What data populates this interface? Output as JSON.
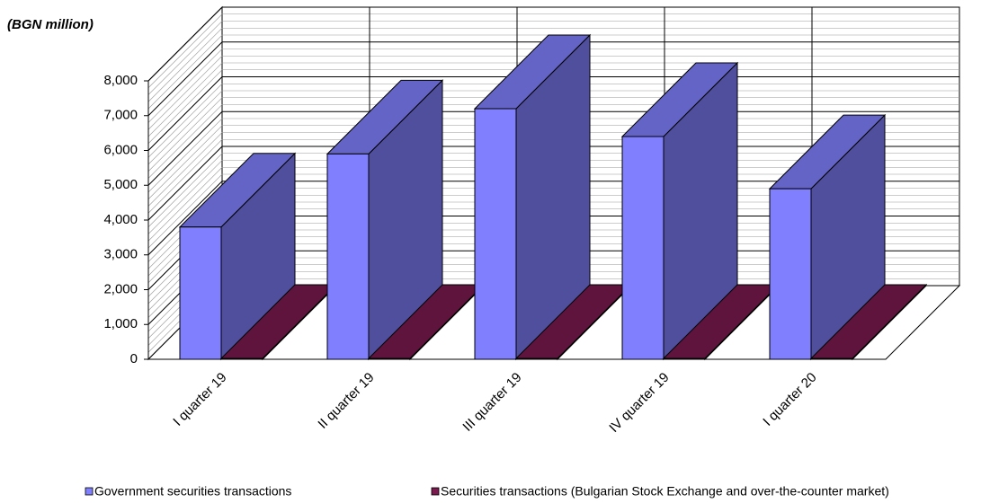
{
  "chart_data": {
    "type": "bar3d",
    "title": "(BGN million)",
    "categories": [
      "I quarter 19",
      "II quarter 19",
      "III quarter 19",
      "IV quarter 19",
      "I quarter 20"
    ],
    "series": [
      {
        "name": "Government securities transactions",
        "color": "#8080ff",
        "values": [
          3800,
          5900,
          7200,
          6400,
          4900
        ]
      },
      {
        "name": "Securities transactions (Bulgarian Stock Exchange and over-the-counter market)",
        "color": "#7a1a4e",
        "values": [
          25,
          25,
          25,
          25,
          25
        ]
      }
    ],
    "ylim": [
      0,
      8000
    ],
    "yticks": [
      0,
      {
        "value": 1000,
        "label": "1,000"
      },
      {
        "value": 2000,
        "label": "2,000"
      },
      {
        "value": 3000,
        "label": "3,000"
      },
      {
        "value": 4000,
        "label": "4,000"
      },
      {
        "value": 5000,
        "label": "5,000"
      },
      {
        "value": 6000,
        "label": "6,000"
      },
      {
        "value": 7000,
        "label": "7,000"
      },
      {
        "value": 8000,
        "label": "8,000"
      }
    ],
    "grid": true,
    "legend": "bottom"
  }
}
